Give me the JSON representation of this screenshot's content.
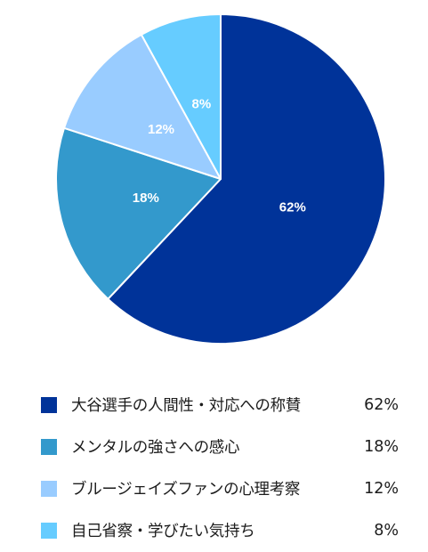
{
  "chart_data": {
    "type": "pie",
    "categories": [
      "大谷選手の人間性・対応への称賛",
      "メンタルの強さへの感心",
      "ブルージェイズファンの心理考察",
      "自己省察・学びたい気持ち"
    ],
    "values": [
      62,
      18,
      12,
      8
    ],
    "value_labels": [
      "62%",
      "18%",
      "12%",
      "8%"
    ],
    "colors": [
      "#003399",
      "#3399cc",
      "#99ccff",
      "#66ccff"
    ],
    "start_angle": "12 o'clock",
    "direction": "clockwise",
    "legend_position": "bottom"
  },
  "legend": {
    "items": [
      {
        "label": "大谷選手の人間性・対応への称賛",
        "value": "62%",
        "color": "#003399"
      },
      {
        "label": "メンタルの強さへの感心",
        "value": "18%",
        "color": "#3399cc"
      },
      {
        "label": "ブルージェイズファンの心理考察",
        "value": "12%",
        "color": "#99ccff"
      },
      {
        "label": "自己省察・学びたい気持ち",
        "value": "8%",
        "color": "#66ccff"
      }
    ]
  }
}
